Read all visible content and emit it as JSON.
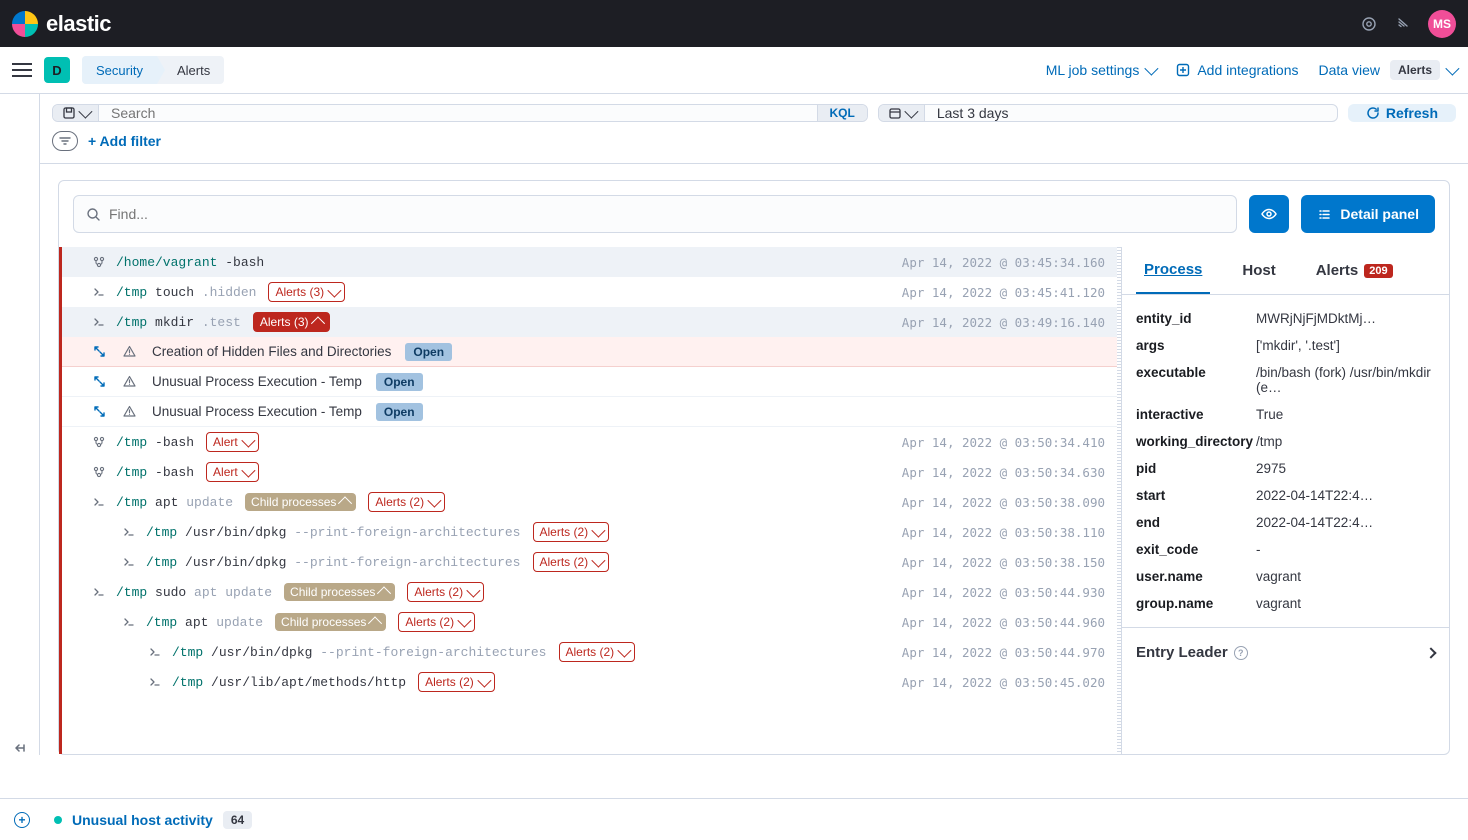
{
  "brand": "elastic",
  "avatar": "MS",
  "space_badge": "D",
  "breadcrumb": {
    "security": "Security",
    "alerts": "Alerts"
  },
  "header_actions": {
    "ml_jobs": "ML job settings",
    "add_integrations": "Add integrations",
    "data_view": "Data view",
    "data_view_pill": "Alerts"
  },
  "search": {
    "placeholder": "Search",
    "kql": "KQL"
  },
  "date_range": "Last 3 days",
  "refresh_label": "Refresh",
  "add_filter": "+ Add filter",
  "find_placeholder": "Find...",
  "detail_panel_btn": "Detail panel",
  "tree": [
    {
      "depth": 0,
      "icon": "branch",
      "sel": true,
      "segs": [
        [
          "dir",
          "/home/vagrant"
        ],
        [
          "cmd",
          " -bash"
        ]
      ],
      "ts": "Apr 14, 2022 @ 03:45:34.160"
    },
    {
      "depth": 0,
      "icon": "prompt",
      "segs": [
        [
          "dir",
          "/tmp"
        ],
        [
          "cmd",
          " touch "
        ],
        [
          "arg",
          ".hidden"
        ]
      ],
      "badges": [
        {
          "type": "alert",
          "text": "Alerts (3)",
          "chev": "down"
        }
      ],
      "ts": "Apr 14, 2022 @ 03:45:41.120"
    },
    {
      "depth": 0,
      "icon": "prompt",
      "sel": true,
      "segs": [
        [
          "dir",
          "/tmp"
        ],
        [
          "cmd",
          " mkdir "
        ],
        [
          "arg",
          ".test"
        ]
      ],
      "badges": [
        {
          "type": "alert-solid",
          "text": "Alerts (3)",
          "chev": "up"
        }
      ],
      "ts": "Apr 14, 2022 @ 03:49:16.140"
    },
    {
      "depth": 0,
      "icon": "alert-expand",
      "alerthl": true,
      "alert_text": "Creation of Hidden Files and Directories",
      "pill": "Open"
    },
    {
      "depth": 0,
      "icon": "alert-expand",
      "alertopen": true,
      "alert_text": "Unusual Process Execution - Temp",
      "pill": "Open"
    },
    {
      "depth": 0,
      "icon": "alert-expand",
      "alertopen": true,
      "alert_text": "Unusual Process Execution - Temp",
      "pill": "Open"
    },
    {
      "depth": 0,
      "icon": "branch",
      "segs": [
        [
          "dir",
          "/tmp"
        ],
        [
          "cmd",
          " -bash"
        ]
      ],
      "badges": [
        {
          "type": "alert",
          "text": "Alert",
          "chev": "down"
        }
      ],
      "ts": "Apr 14, 2022 @ 03:50:34.410"
    },
    {
      "depth": 0,
      "icon": "branch",
      "segs": [
        [
          "dir",
          "/tmp"
        ],
        [
          "cmd",
          " -bash"
        ]
      ],
      "badges": [
        {
          "type": "alert",
          "text": "Alert",
          "chev": "down"
        }
      ],
      "ts": "Apr 14, 2022 @ 03:50:34.630"
    },
    {
      "depth": 0,
      "icon": "prompt",
      "segs": [
        [
          "dir",
          "/tmp"
        ],
        [
          "cmd",
          " apt "
        ],
        [
          "arg",
          "update"
        ]
      ],
      "badges": [
        {
          "type": "tan",
          "text": "Child processes",
          "chev": "up"
        },
        {
          "type": "alert",
          "text": "Alerts (2)",
          "chev": "down"
        }
      ],
      "ts": "Apr 14, 2022 @ 03:50:38.090"
    },
    {
      "depth": 1,
      "icon": "prompt",
      "segs": [
        [
          "dir",
          "/tmp"
        ],
        [
          "cmd",
          " /usr/bin/dpkg "
        ],
        [
          "arg",
          "--print-foreign-architectures"
        ]
      ],
      "badges": [
        {
          "type": "alert",
          "text": "Alerts (2)",
          "chev": "down"
        }
      ],
      "ts": "Apr 14, 2022 @ 03:50:38.110"
    },
    {
      "depth": 1,
      "icon": "prompt",
      "segs": [
        [
          "dir",
          "/tmp"
        ],
        [
          "cmd",
          " /usr/bin/dpkg "
        ],
        [
          "arg",
          "--print-foreign-architectures"
        ]
      ],
      "badges": [
        {
          "type": "alert",
          "text": "Alerts (2)",
          "chev": "down"
        }
      ],
      "ts": "Apr 14, 2022 @ 03:50:38.150"
    },
    {
      "depth": 0,
      "icon": "prompt",
      "segs": [
        [
          "dir",
          "/tmp"
        ],
        [
          "cmd",
          " sudo "
        ],
        [
          "arg",
          "apt update"
        ]
      ],
      "badges": [
        {
          "type": "tan",
          "text": "Child processes",
          "chev": "up"
        },
        {
          "type": "alert",
          "text": "Alerts (2)",
          "chev": "down"
        }
      ],
      "ts": "Apr 14, 2022 @ 03:50:44.930"
    },
    {
      "depth": 1,
      "icon": "prompt",
      "segs": [
        [
          "dir",
          "/tmp"
        ],
        [
          "cmd",
          " apt "
        ],
        [
          "arg",
          "update"
        ]
      ],
      "badges": [
        {
          "type": "tan",
          "text": "Child processes",
          "chev": "up"
        },
        {
          "type": "alert",
          "text": "Alerts (2)",
          "chev": "down"
        }
      ],
      "ts": "Apr 14, 2022 @ 03:50:44.960"
    },
    {
      "depth": 2,
      "icon": "prompt",
      "segs": [
        [
          "dir",
          "/tmp"
        ],
        [
          "cmd",
          " /usr/bin/dpkg "
        ],
        [
          "arg",
          "--print-foreign-architectures"
        ]
      ],
      "badges": [
        {
          "type": "alert",
          "text": "Alerts (2)",
          "chev": "down"
        }
      ],
      "ts": "Apr 14, 2022 @ 03:50:44.970"
    },
    {
      "depth": 2,
      "icon": "prompt",
      "segs": [
        [
          "dir",
          "/tmp"
        ],
        [
          "cmd",
          " /usr/lib/apt/methods/http "
        ]
      ],
      "badges": [
        {
          "type": "alert",
          "text": "Alerts (2)",
          "chev": "down"
        }
      ],
      "ts": "Apr 14, 2022 @ 03:50:45.020"
    }
  ],
  "detail_tabs": {
    "process": "Process",
    "host": "Host",
    "alerts": "Alerts",
    "alerts_count": "209"
  },
  "detail_kv": [
    [
      "entity_id",
      "MWRjNjFjMDktMj…"
    ],
    [
      "args",
      "['mkdir', '.test']"
    ],
    [
      "executable",
      "/bin/bash (fork) /usr/bin/mkdir (e…"
    ],
    [
      "interactive",
      "True"
    ],
    [
      "working_directory",
      "/tmp"
    ],
    [
      "pid",
      "2975"
    ],
    [
      "start",
      "2022-04-14T22:4…"
    ],
    [
      "end",
      "2022-04-14T22:4…"
    ],
    [
      "exit_code",
      "-"
    ],
    [
      "user.name",
      "vagrant"
    ],
    [
      "group.name",
      "vagrant"
    ]
  ],
  "entry_leader": "Entry Leader",
  "footer_case": "Unusual host activity",
  "footer_case_count": "64"
}
